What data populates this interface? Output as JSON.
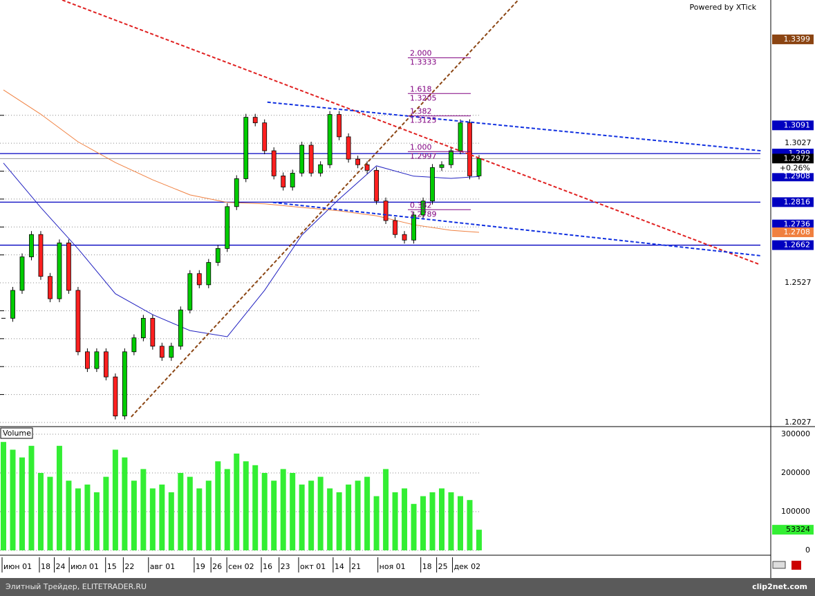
{
  "chart_data": {
    "type": "candlestick",
    "header": "Powered by XTick",
    "volume_title": "Volume",
    "footer_left": "Элитный Трейдер, ELITETRADER.RU",
    "footer_right": "clip2net.com",
    "ylim": [
      1.2017,
      1.354
    ],
    "yticks": [
      1.2027,
      1.2527,
      1.3027
    ],
    "minor_yticks": [
      1.2127,
      1.2227,
      1.2327,
      1.2427,
      1.2627,
      1.2727,
      1.2827,
      1.2927,
      1.3127
    ],
    "vlim": [
      0,
      300000
    ],
    "vticks": [
      0,
      100000,
      200000,
      300000
    ],
    "up_color": "#00cc00",
    "down_color": "#ff2020",
    "volume_color": "#33ee33",
    "closes": [
      1.24,
      1.25,
      1.262,
      1.27,
      1.255,
      1.247,
      1.267,
      1.25,
      1.228,
      1.222,
      1.228,
      1.219,
      1.205,
      1.228,
      1.233,
      1.24,
      1.23,
      1.226,
      1.23,
      1.243,
      1.256,
      1.252,
      1.26,
      1.265,
      1.28,
      1.29,
      1.312,
      1.31,
      1.3,
      1.291,
      1.287,
      1.292,
      1.302,
      1.292,
      1.295,
      1.313,
      1.305,
      1.297,
      1.295,
      1.293,
      1.282,
      1.275,
      1.27,
      1.268,
      1.277,
      1.282,
      1.294,
      1.295,
      1.3,
      1.31,
      1.291,
      1.2972
    ],
    "volumes": [
      280000,
      260000,
      240000,
      270000,
      200000,
      190000,
      270000,
      180000,
      160000,
      170000,
      150000,
      190000,
      260000,
      240000,
      180000,
      210000,
      160000,
      170000,
      150000,
      200000,
      190000,
      160000,
      180000,
      230000,
      210000,
      250000,
      230000,
      220000,
      200000,
      180000,
      210000,
      200000,
      170000,
      180000,
      190000,
      160000,
      150000,
      170000,
      180000,
      190000,
      140000,
      210000,
      150000,
      160000,
      120000,
      140000,
      150000,
      160000,
      150000,
      140000,
      130000,
      53324
    ],
    "lines": [
      {
        "color": "#2020c0",
        "x": [
          0,
          4,
          8,
          12,
          16,
          20,
          24,
          28,
          32,
          36,
          40,
          44,
          48,
          51
        ],
        "values": [
          1.2956,
          1.2797,
          1.2649,
          1.2488,
          1.2413,
          1.2356,
          1.2334,
          1.25,
          1.2698,
          1.2827,
          1.2946,
          1.2909,
          1.2901,
          1.2908
        ]
      },
      {
        "color": "#f08040",
        "x": [
          0,
          4,
          8,
          12,
          16,
          20,
          24,
          28,
          32,
          36,
          40,
          44,
          48,
          51
        ],
        "values": [
          1.3218,
          1.3131,
          1.3032,
          1.2958,
          1.2896,
          1.2842,
          1.2815,
          1.281,
          1.2797,
          1.2785,
          1.2767,
          1.2735,
          1.2715,
          1.2708
        ]
      }
    ],
    "hlines": [
      {
        "value": 1.299,
        "color": "#0000c0"
      },
      {
        "value": 1.2816,
        "color": "#0000c0"
      },
      {
        "value": 1.2662,
        "color": "#0000c0"
      },
      {
        "value": 1.2972,
        "color": "#999999"
      }
    ],
    "trendlines": [
      {
        "color": "#e02020",
        "x1": 6.3,
        "y1": 1.354,
        "x2": 81.0,
        "y2": 1.2594
      },
      {
        "color": "#8b4513",
        "x1": 13.7,
        "y1": 1.2047,
        "x2": 55.2,
        "y2": 1.354
      },
      {
        "color": "#1030e0",
        "x1": 28.3,
        "y1": 1.3174,
        "x2": 81.2,
        "y2": 1.3
      },
      {
        "color": "#1030e0",
        "x1": 28.9,
        "y1": 1.2815,
        "x2": 81.2,
        "y2": 1.2624
      }
    ],
    "fib": [
      {
        "ratio": "2.000",
        "price": 1.3333
      },
      {
        "ratio": "1.618",
        "price": 1.3205
      },
      {
        "ratio": "1.382",
        "price": 1.3125
      },
      {
        "ratio": "1.000",
        "price": 1.2997
      },
      {
        "ratio": "0.382",
        "price": 1.2789
      }
    ],
    "price_labels": [
      {
        "value": 1.3399,
        "color": "#8b4513"
      },
      {
        "value": 1.3091,
        "color": "#0000c0"
      },
      {
        "value": 1.299,
        "color": "#0000c0"
      },
      {
        "value": 1.2972,
        "color": "#000000"
      },
      {
        "value": 1.2908,
        "color": "#0000c0"
      },
      {
        "value": 1.2816,
        "color": "#0000c0"
      },
      {
        "value": 1.2736,
        "color": "#0000c0"
      },
      {
        "value": 1.2708,
        "color": "#f08040"
      },
      {
        "value": 1.2662,
        "color": "#0000c0"
      }
    ],
    "change_label": "+0.26%",
    "xticks": [
      {
        "value": 0,
        "label": "июн 01"
      },
      {
        "value": 4.0,
        "label": "18"
      },
      {
        "value": 5.6,
        "label": "24"
      },
      {
        "value": 7.2,
        "label": "июл 01"
      },
      {
        "value": 11.1,
        "label": "15"
      },
      {
        "value": 13.0,
        "label": "22"
      },
      {
        "value": 15.7,
        "label": "авг 01"
      },
      {
        "value": 20.6,
        "label": "19"
      },
      {
        "value": 22.4,
        "label": "26"
      },
      {
        "value": 24.1,
        "label": "сен 02"
      },
      {
        "value": 27.8,
        "label": "16"
      },
      {
        "value": 29.7,
        "label": "23"
      },
      {
        "value": 31.8,
        "label": "окт 01"
      },
      {
        "value": 35.5,
        "label": "14"
      },
      {
        "value": 37.3,
        "label": "21"
      },
      {
        "value": 40.3,
        "label": "ноя 01"
      },
      {
        "value": 44.9,
        "label": "18"
      },
      {
        "value": 46.6,
        "label": "25"
      },
      {
        "value": 48.3,
        "label": "дек 02"
      }
    ]
  }
}
